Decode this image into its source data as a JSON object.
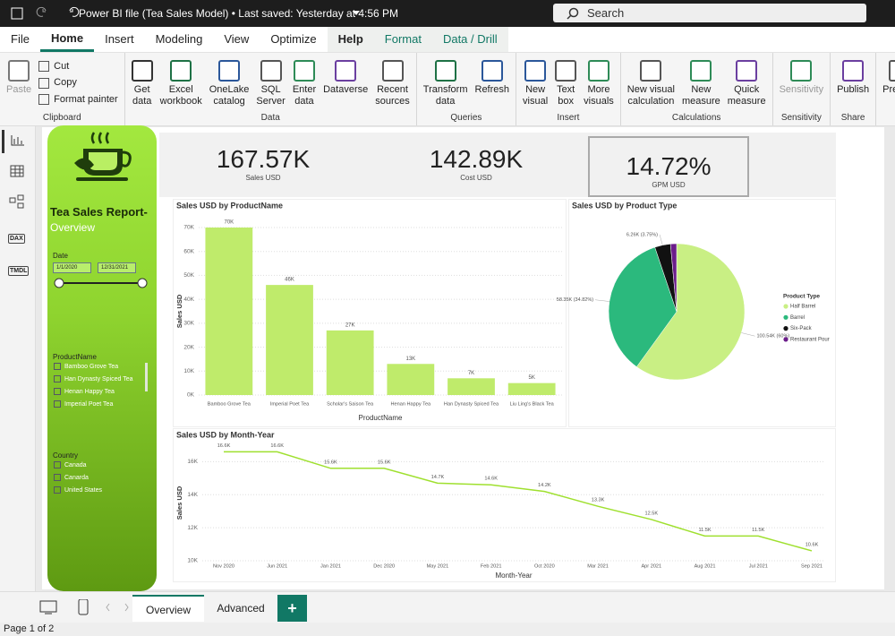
{
  "titlebar": {
    "title": "Power BI file (Tea Sales Model) • Last saved: Yesterday at 4:56 PM",
    "search": "Search"
  },
  "menu": [
    "File",
    "Home",
    "Insert",
    "Modeling",
    "View",
    "Optimize",
    "Help",
    "Format",
    "Data / Drill"
  ],
  "ribbon": {
    "groups": [
      {
        "name": "Clipboard",
        "buttons": [
          {
            "label": [
              "Paste"
            ]
          }
        ],
        "small_buttons": [
          "Cut",
          "Copy",
          "Format painter"
        ]
      },
      {
        "name": "Data",
        "buttons": [
          {
            "label": [
              "Get",
              "data"
            ]
          },
          {
            "label": [
              "Excel",
              "workbook"
            ]
          },
          {
            "label": [
              "OneLake",
              "catalog"
            ]
          },
          {
            "label": [
              "SQL",
              "Server"
            ]
          },
          {
            "label": [
              "Enter",
              "data"
            ]
          },
          {
            "label": [
              "Dataverse"
            ]
          },
          {
            "label": [
              "Recent",
              "sources"
            ]
          }
        ]
      },
      {
        "name": "Queries",
        "buttons": [
          {
            "label": [
              "Transform",
              "data"
            ]
          },
          {
            "label": [
              "Refresh"
            ]
          }
        ]
      },
      {
        "name": "Insert",
        "buttons": [
          {
            "label": [
              "New",
              "visual"
            ]
          },
          {
            "label": [
              "Text",
              "box"
            ]
          },
          {
            "label": [
              "More",
              "visuals"
            ]
          }
        ]
      },
      {
        "name": "Calculations",
        "buttons": [
          {
            "label": [
              "New visual",
              "calculation"
            ]
          },
          {
            "label": [
              "New",
              "measure"
            ]
          },
          {
            "label": [
              "Quick",
              "measure"
            ]
          }
        ]
      },
      {
        "name": "Sensitivity",
        "buttons": [
          {
            "label": [
              "Sensitivity"
            ]
          }
        ]
      },
      {
        "name": "Share",
        "buttons": [
          {
            "label": [
              "Publish"
            ]
          }
        ]
      },
      {
        "name": "",
        "buttons": [
          {
            "label": [
              "Prep da",
              "A"
            ]
          }
        ]
      }
    ]
  },
  "rail": [
    "DAX",
    "TMDL"
  ],
  "sidebar": {
    "title": "Tea Sales Report-",
    "subtitle": "Overview",
    "date": {
      "label": "Date",
      "start": "1/1/2020",
      "end": "12/31/2021"
    },
    "product": {
      "label": "ProductName",
      "items": [
        "Bamboo Grove Tea",
        "Han Dynasty Spiced Tea",
        "Henan Happy Tea",
        "Imperial Poet Tea"
      ]
    },
    "country": {
      "label": "Country",
      "items": [
        "Canada",
        "Canarda",
        "United States"
      ]
    }
  },
  "cards": [
    {
      "value": "167.57K",
      "label": "Sales USD"
    },
    {
      "value": "142.89K",
      "label": "Cost USD"
    },
    {
      "value": "14.72%",
      "label": "GPM USD"
    }
  ],
  "chart_data": [
    {
      "type": "bar",
      "title": "Sales USD by ProductName",
      "x_label": "ProductName",
      "y_label": "Sales USD",
      "categories": [
        "Bamboo Grove Tea",
        "Imperial Poet Tea",
        "Scholar's Saison Tea",
        "Henan Happy Tea",
        "Han Dynasty Spiced Tea",
        "Liu Ling's Black Tea"
      ],
      "values": [
        70000,
        46000,
        27000,
        13000,
        7000,
        5000
      ],
      "value_labels": [
        "70K",
        "46K",
        "27K",
        "13K",
        "7K",
        "5K"
      ],
      "color": "#bfeb6b",
      "ylim": [
        0,
        70000
      ],
      "yticks": [
        {
          "value": 0,
          "label": "0K"
        },
        {
          "value": 10000,
          "label": "10K"
        },
        {
          "value": 20000,
          "label": "20K"
        },
        {
          "value": 30000,
          "label": "30K"
        },
        {
          "value": 40000,
          "label": "40K"
        },
        {
          "value": 50000,
          "label": "50K"
        },
        {
          "value": 60000,
          "label": "60K"
        },
        {
          "value": 70000,
          "label": "70K"
        }
      ],
      "grid": true
    },
    {
      "type": "pie",
      "title": "Sales USD by Product Type",
      "legend_title": "Product Type",
      "categories": [
        "Half Barrel",
        "Barrel",
        "Six-Pack",
        "Restaurant Pour"
      ],
      "values": [
        100540,
        58350,
        6260,
        2420
      ],
      "value_labels": [
        "100.54K (60%)",
        "58.35K (34.82%)",
        "6.26K (3.75%)",
        null
      ],
      "colors": [
        "#c9ef84",
        "#2bb97d",
        "#111111",
        "#6b1d8a"
      ]
    },
    {
      "type": "line",
      "title": "Sales USD by Month-Year",
      "x_label": "Month-Year",
      "y_label": "Sales USD",
      "categories": [
        "Nov 2020",
        "Jun 2021",
        "Jan 2021",
        "Dec 2020",
        "May 2021",
        "Feb 2021",
        "Oct 2020",
        "Mar 2021",
        "Apr 2021",
        "Aug 2021",
        "Jul 2021",
        "Sep 2021"
      ],
      "values": [
        16600,
        16600,
        15600,
        15600,
        14700,
        14600,
        14200,
        13300,
        12500,
        11500,
        11500,
        10600
      ],
      "value_labels": [
        "16.6K",
        "16.6K",
        "15.6K",
        "15.6K",
        "14.7K",
        "14.6K",
        "14.2K",
        "13.3K",
        "12.5K",
        "11.5K",
        "11.5K",
        "10.6K"
      ],
      "color": "#9fe02f",
      "ylim": [
        10000,
        17000
      ],
      "yticks": [
        {
          "value": 10000,
          "label": "10K"
        },
        {
          "value": 12000,
          "label": "12K"
        },
        {
          "value": 14000,
          "label": "14K"
        },
        {
          "value": 16000,
          "label": "16K"
        }
      ],
      "grid": true
    }
  ],
  "pages": [
    "Overview",
    "Advanced",
    "+"
  ],
  "status": "Page 1 of 2"
}
